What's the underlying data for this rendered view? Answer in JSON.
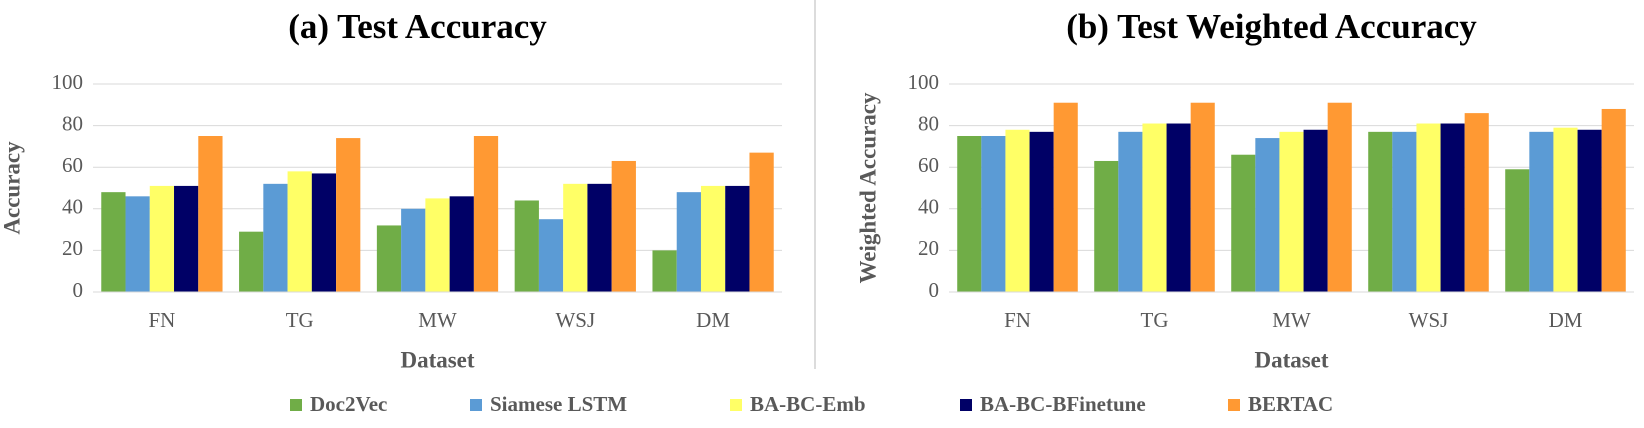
{
  "chart_data": [
    {
      "type": "bar",
      "title": "(a) Test Accuracy",
      "x_label": "Dataset",
      "y_label": "Accuracy",
      "categories": [
        "FN",
        "TG",
        "MW",
        "WSJ",
        "DM"
      ],
      "series": [
        {
          "name": "Doc2Vec",
          "color": "#70ad47",
          "values": [
            48,
            29,
            32,
            44,
            20
          ]
        },
        {
          "name": "Siamese LSTM",
          "color": "#5b9bd5",
          "values": [
            46,
            52,
            40,
            35,
            48
          ]
        },
        {
          "name": "BA-BC-Emb",
          "color": "#ffff66",
          "values": [
            51,
            58,
            45,
            52,
            51
          ]
        },
        {
          "name": "BA-BC-BFinetune",
          "color": "#000066",
          "values": [
            51,
            57,
            46,
            52,
            51
          ]
        },
        {
          "name": "BERTAC",
          "color": "#ff9933",
          "values": [
            75,
            74,
            75,
            63,
            67
          ]
        }
      ],
      "ylim": [
        0,
        100
      ],
      "yticks": [
        0,
        20,
        40,
        60,
        80,
        100
      ],
      "grid": true
    },
    {
      "type": "bar",
      "title": "(b) Test Weighted Accuracy",
      "x_label": "Dataset",
      "y_label": "Weighted Accuracy",
      "categories": [
        "FN",
        "TG",
        "MW",
        "WSJ",
        "DM"
      ],
      "series": [
        {
          "values": [
            75,
            63,
            66,
            77,
            59
          ]
        },
        {
          "values": [
            75,
            77,
            74,
            77,
            77
          ]
        },
        {
          "values": [
            78,
            81,
            77,
            81,
            79
          ]
        },
        {
          "values": [
            77,
            81,
            78,
            81,
            78
          ]
        },
        {
          "values": [
            91,
            91,
            91,
            86,
            88
          ]
        }
      ],
      "ylim": [
        0,
        100
      ],
      "yticks": [
        0,
        20,
        40,
        60,
        80,
        100
      ],
      "grid": true
    }
  ]
}
